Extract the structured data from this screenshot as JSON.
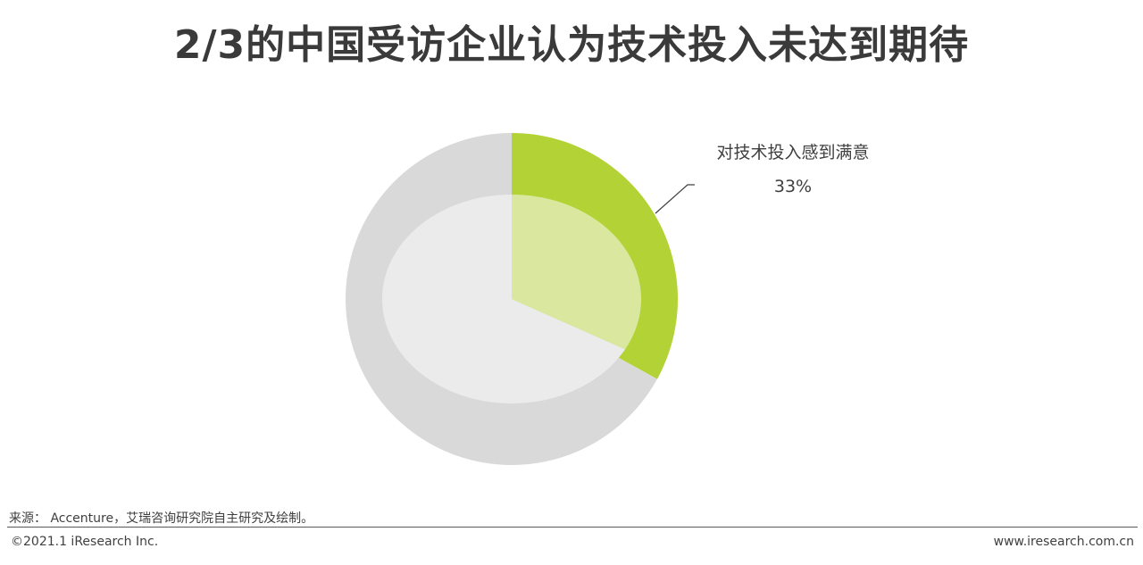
{
  "title": "2/3的中国受访企业认为技术投入未达到期待",
  "chart_data": {
    "type": "pie",
    "slices": [
      {
        "label": "对技术投入感到满意",
        "value": 33,
        "value_label": "33%",
        "color": "#b2d235",
        "inner_color": "#d9e89e"
      },
      {
        "label": "",
        "value": 67,
        "value_label": "",
        "color": "#d9d9d9",
        "inner_color": "#ebebeb"
      }
    ],
    "legend": "none"
  },
  "footer": {
    "source": "来源： Accenture，艾瑞咨询研究院自主研究及绘制。",
    "copyright": "©2021.1 iResearch Inc.",
    "website": "www.iresearch.com.cn"
  }
}
